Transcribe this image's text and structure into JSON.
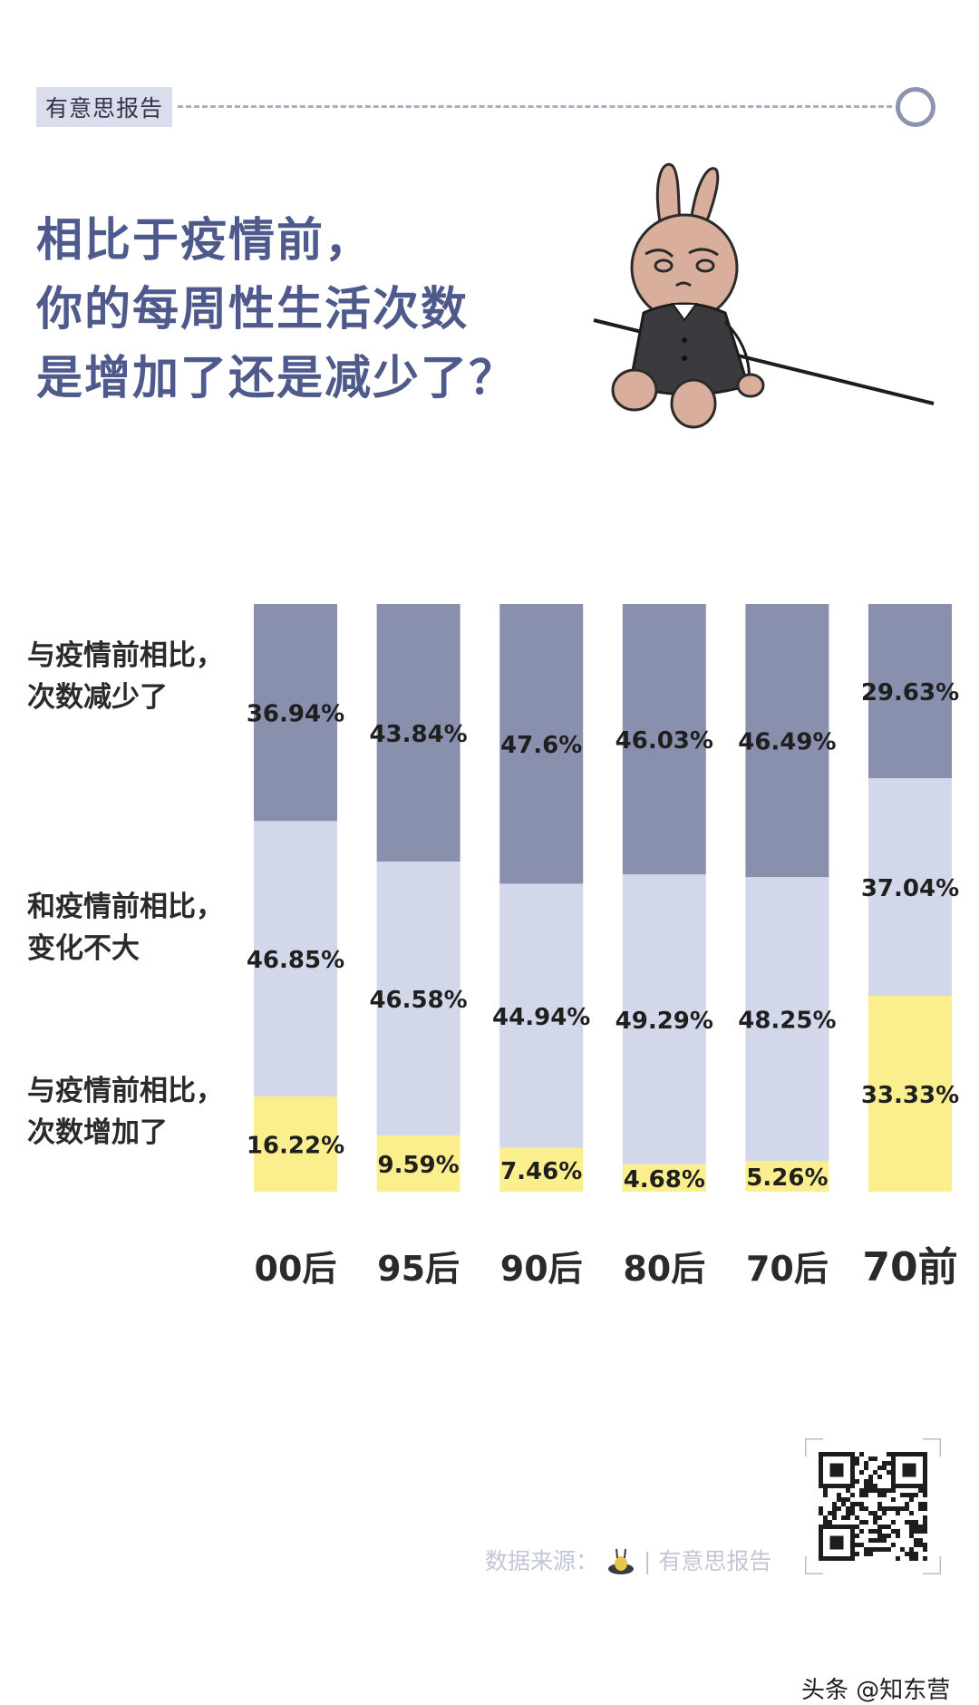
{
  "brand": {
    "tag": "有意思报告"
  },
  "headline": {
    "lines": [
      "相比于疫情前，",
      "你的每周性生活次数",
      "是增加了还是减少了？"
    ]
  },
  "legend": {
    "decreased": [
      "与疫情前相比，",
      "次数减少了"
    ],
    "unchanged": [
      "和疫情前相比，",
      "变化不大"
    ],
    "increased": [
      "与疫情前相比，",
      "次数增加了"
    ]
  },
  "chart_data": {
    "type": "bar",
    "stacked": true,
    "percent_stacked": true,
    "categories": [
      "00后",
      "95后",
      "90后",
      "80后",
      "70后",
      "70前"
    ],
    "series": [
      {
        "name": "",
        "key": "decreased",
        "color": "#8990ae",
        "values": [
          36.94,
          43.84,
          47.6,
          46.03,
          46.49,
          29.63
        ],
        "labels": [
          "36.94%",
          "43.84%",
          "47.6%",
          "46.03%",
          "46.49%",
          "29.63%"
        ]
      },
      {
        "name": "",
        "key": "unchanged",
        "color": "#d3d7ea",
        "values": [
          46.85,
          46.58,
          44.94,
          49.29,
          48.25,
          37.04
        ],
        "labels": [
          "46.85%",
          "46.58%",
          "44.94%",
          "49.29%",
          "48.25%",
          "37.04%"
        ]
      },
      {
        "name": "",
        "key": "increased",
        "color": "#fbee8c",
        "values": [
          16.22,
          9.59,
          7.46,
          4.68,
          5.26,
          33.33
        ],
        "labels": [
          "16.22%",
          "9.59%",
          "7.46%",
          "4.68%",
          "5.26%",
          "33.33%"
        ]
      }
    ],
    "ylim": [
      0,
      100
    ],
    "grid": false
  },
  "footer": {
    "source_label": "数据来源：",
    "separator": "|",
    "source_name": "有意思报告"
  },
  "watermark": "头条 @知东营"
}
